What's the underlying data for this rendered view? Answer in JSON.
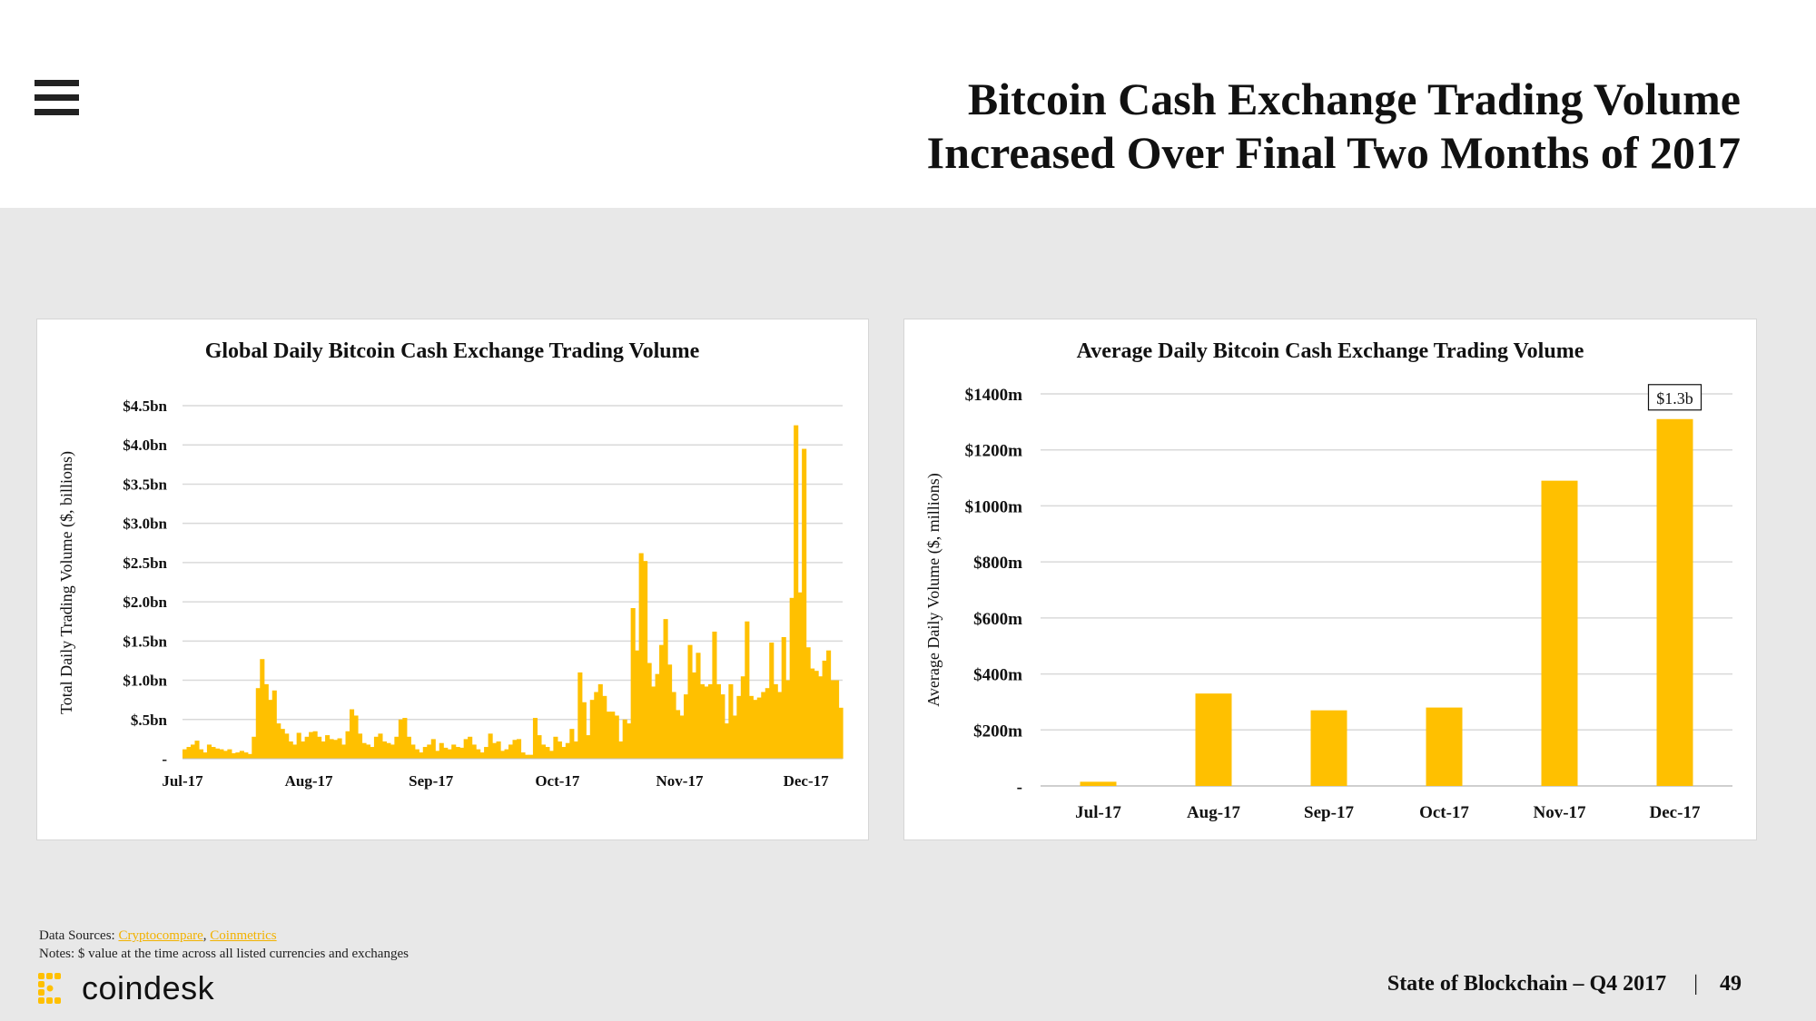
{
  "header": {
    "title_line1": "Bitcoin Cash Exchange Trading Volume",
    "title_line2": "Increased Over Final Two Months of 2017"
  },
  "colors": {
    "bar": "#FFC000",
    "grid": "#d9d9d9",
    "background": "#e8e8e8"
  },
  "chart_data": [
    {
      "type": "bar",
      "title": "Global Daily Bitcoin Cash Exchange Trading Volume",
      "xlabel": "",
      "ylabel": "Total Daily Trading Volume ($, billions)",
      "ylim": [
        0,
        4.5
      ],
      "yticks": [
        {
          "v": 0,
          "label": "-"
        },
        {
          "v": 0.5,
          "label": "$.5bn"
        },
        {
          "v": 1.0,
          "label": "$1.0bn"
        },
        {
          "v": 1.5,
          "label": "$1.5bn"
        },
        {
          "v": 2.0,
          "label": "$2.0bn"
        },
        {
          "v": 2.5,
          "label": "$2.5bn"
        },
        {
          "v": 3.0,
          "label": "$3.0bn"
        },
        {
          "v": 3.5,
          "label": "$3.5bn"
        },
        {
          "v": 4.0,
          "label": "$4.0bn"
        },
        {
          "v": 4.5,
          "label": "$4.5bn"
        }
      ],
      "xticks": [
        {
          "day": 0,
          "label": "Jul-17"
        },
        {
          "day": 31,
          "label": "Aug-17"
        },
        {
          "day": 61,
          "label": "Sep-17"
        },
        {
          "day": 92,
          "label": "Oct-17"
        },
        {
          "day": 122,
          "label": "Nov-17"
        },
        {
          "day": 153,
          "label": "Dec-17"
        }
      ],
      "values": [
        0.12,
        0.15,
        0.18,
        0.23,
        0.12,
        0.08,
        0.18,
        0.15,
        0.13,
        0.12,
        0.1,
        0.12,
        0.07,
        0.08,
        0.1,
        0.08,
        0.06,
        0.28,
        0.9,
        1.27,
        0.95,
        0.75,
        0.87,
        0.45,
        0.38,
        0.32,
        0.22,
        0.18,
        0.33,
        0.22,
        0.28,
        0.34,
        0.35,
        0.28,
        0.22,
        0.3,
        0.25,
        0.24,
        0.26,
        0.18,
        0.35,
        0.63,
        0.55,
        0.32,
        0.2,
        0.18,
        0.15,
        0.28,
        0.32,
        0.22,
        0.2,
        0.18,
        0.28,
        0.5,
        0.52,
        0.28,
        0.18,
        0.12,
        0.08,
        0.15,
        0.18,
        0.25,
        0.1,
        0.2,
        0.14,
        0.12,
        0.18,
        0.15,
        0.14,
        0.25,
        0.28,
        0.18,
        0.12,
        0.08,
        0.15,
        0.32,
        0.2,
        0.22,
        0.1,
        0.12,
        0.18,
        0.24,
        0.25,
        0.08,
        0.05,
        0.05,
        0.52,
        0.3,
        0.18,
        0.15,
        0.1,
        0.28,
        0.22,
        0.15,
        0.2,
        0.38,
        0.22,
        1.1,
        0.72,
        0.3,
        0.75,
        0.85,
        0.95,
        0.8,
        0.6,
        0.6,
        0.55,
        0.22,
        0.5,
        0.45,
        1.92,
        1.38,
        2.62,
        2.52,
        1.22,
        0.92,
        1.08,
        1.45,
        1.78,
        1.2,
        0.85,
        0.62,
        0.55,
        0.82,
        1.45,
        1.1,
        1.35,
        0.95,
        0.92,
        0.95,
        1.62,
        0.95,
        0.82,
        0.45,
        0.95,
        0.55,
        0.8,
        1.05,
        1.75,
        0.8,
        0.75,
        0.78,
        0.85,
        0.9,
        1.48,
        0.95,
        0.85,
        1.55,
        1.0,
        2.05,
        4.25,
        2.12,
        3.95,
        1.42,
        1.15,
        1.12,
        1.05,
        1.25,
        1.38,
        1.0,
        1.0,
        0.65
      ]
    },
    {
      "type": "bar",
      "title": "Average Daily Bitcoin Cash Exchange Trading Volume",
      "xlabel": "",
      "ylabel": "Average Daily Volume ($, millions)",
      "ylim": [
        0,
        1400
      ],
      "yticks": [
        {
          "v": 0,
          "label": "-"
        },
        {
          "v": 200,
          "label": "$200m"
        },
        {
          "v": 400,
          "label": "$400m"
        },
        {
          "v": 600,
          "label": "$600m"
        },
        {
          "v": 800,
          "label": "$800m"
        },
        {
          "v": 1000,
          "label": "$1000m"
        },
        {
          "v": 1200,
          "label": "$1200m"
        },
        {
          "v": 1400,
          "label": "$1400m"
        }
      ],
      "categories": [
        "Jul-17",
        "Aug-17",
        "Sep-17",
        "Oct-17",
        "Nov-17",
        "Dec-17"
      ],
      "values": [
        15,
        330,
        270,
        280,
        1090,
        1310
      ],
      "annotation": {
        "index": 5,
        "text": "$1.3b"
      }
    }
  ],
  "notes": {
    "sources_prefix": "Data Sources: ",
    "source1": "Cryptocompare",
    "source_sep": ", ",
    "source2": "Coinmetrics",
    "note_line": "Notes: $ value at the time across all listed currencies and exchanges"
  },
  "logo": {
    "text": "coindesk"
  },
  "footer": {
    "report": "State of Blockchain – Q4 2017",
    "separator": "|",
    "page": "49"
  }
}
